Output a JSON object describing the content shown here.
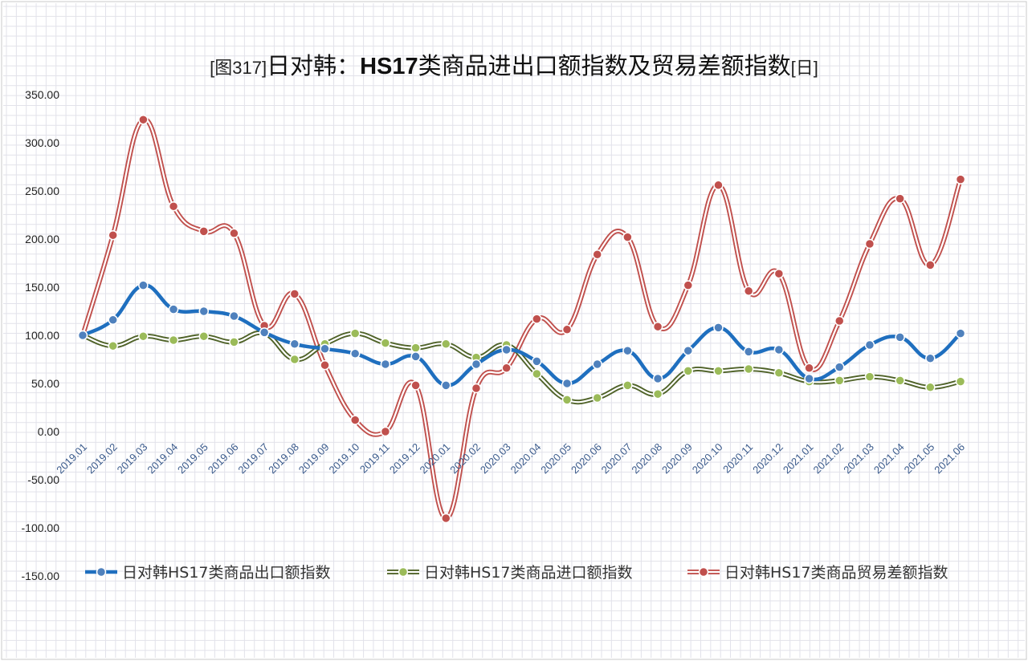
{
  "chart_data": {
    "type": "line",
    "title_prefix": "[图317]",
    "title_main": "日对韩：",
    "title_bold": "HS17",
    "title_rest": "类商品进出口额指数及贸易差额指数",
    "title_suffix": "[日]",
    "categories": [
      "2019.01",
      "2019.02",
      "2019.03",
      "2019.04",
      "2019.05",
      "2019.06",
      "2019.07",
      "2019.08",
      "2019.09",
      "2019.10",
      "2019.11",
      "2019.12",
      "2020.01",
      "2020.02",
      "2020.03",
      "2020.04",
      "2020.05",
      "2020.06",
      "2020.07",
      "2020.08",
      "2020.09",
      "2020.10",
      "2020.11",
      "2020.12",
      "2021.01",
      "2021.02",
      "2021.03",
      "2021.04",
      "2021.05",
      "2021.06"
    ],
    "ylim": [
      -150,
      350
    ],
    "yticks": [
      "350.00",
      "300.00",
      "250.00",
      "200.00",
      "150.00",
      "100.00",
      "50.00",
      "0.00",
      "-50.00",
      "-100.00",
      "-150.00"
    ],
    "grid": true,
    "legend_position": "bottom",
    "series": [
      {
        "name": "日对韩HS17类商品出口额指数",
        "color": "#1f6fbf",
        "values": [
          100,
          116,
          152,
          127,
          125,
          120,
          103,
          91,
          86,
          81,
          70,
          78,
          48,
          70,
          85,
          73,
          50,
          70,
          84,
          55,
          84,
          108,
          83,
          85,
          55,
          67,
          90,
          98,
          76,
          102
        ]
      },
      {
        "name": "日对韩HS17类商品进口额指数",
        "color": "#4f6228",
        "marker": "#9bbb59",
        "values": [
          100,
          89,
          99,
          95,
          99,
          93,
          102,
          75,
          91,
          102,
          92,
          87,
          91,
          77,
          90,
          60,
          33,
          35,
          48,
          39,
          63,
          63,
          65,
          61,
          52,
          53,
          57,
          53,
          46,
          52
        ]
      },
      {
        "name": "日对韩HS17类商品贸易差额指数",
        "color": "#c0504d",
        "values": [
          100,
          204,
          324,
          234,
          208,
          206,
          110,
          143,
          69,
          12,
          0,
          48,
          -90,
          45,
          66,
          117,
          106,
          184,
          202,
          109,
          152,
          256,
          146,
          164,
          66,
          115,
          195,
          242,
          173,
          262
        ]
      }
    ]
  }
}
